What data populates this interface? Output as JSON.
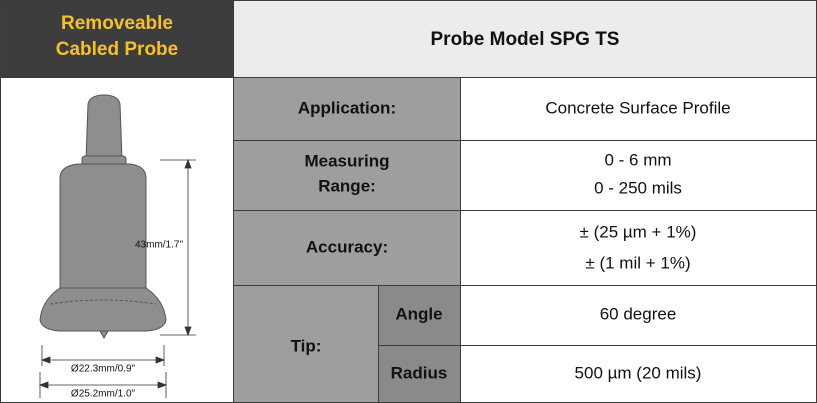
{
  "header": {
    "left_title": [
      "Removeable",
      "Cabled Probe"
    ],
    "title": "Probe Model SPG TS"
  },
  "image": {
    "height_label": "43mm/1.7\"",
    "inner_diameter_label": "Ø22.3mm/0.9\"",
    "outer_diameter_label": "Ø25.2mm/1.0\""
  },
  "table": {
    "rows": [
      {
        "label": [
          "Application:"
        ],
        "values": [
          "Concrete Surface Profile"
        ]
      },
      {
        "label": [
          "Measuring",
          "Range:"
        ],
        "values": [
          "0 - 6 mm",
          "0 - 250 mils"
        ]
      },
      {
        "label": [
          "Accuracy:"
        ],
        "values": [
          "± (25 µm + 1%)",
          "± (1 mil + 1%)"
        ]
      }
    ],
    "tip": {
      "label": "Tip:",
      "rows": [
        {
          "label": "Angle",
          "value": "60 degree"
        },
        {
          "label": "Radius",
          "value": "500 µm (20 mils)"
        }
      ]
    }
  }
}
